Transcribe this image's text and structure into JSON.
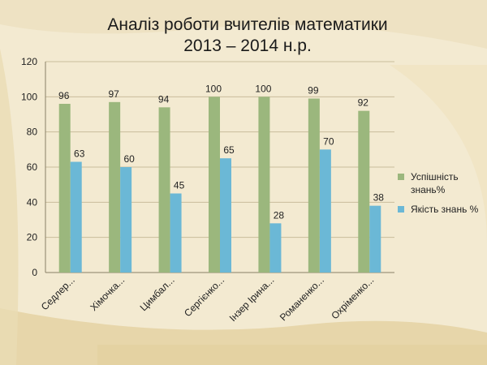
{
  "title_line1": "Аналіз роботи вчителів математики",
  "title_line2": "2013 – 2014 н.р.",
  "colors": {
    "series1": "#9bb77d",
    "series2": "#6bb8d6",
    "background": "#f3ead1",
    "accent": "#e8d6a6"
  },
  "chart_data": {
    "type": "bar",
    "categories": [
      "Седлер...",
      "Хімочка...",
      "Цимбал...",
      "Сергієнко...",
      "Інзер Ірина...",
      "Романенко...",
      "Охріменко..."
    ],
    "series": [
      {
        "name": "Успішність знань%",
        "values": [
          96,
          97,
          94,
          100,
          100,
          99,
          92
        ]
      },
      {
        "name": "Якість знань %",
        "values": [
          63,
          60,
          45,
          65,
          28,
          70,
          38
        ]
      }
    ],
    "ylim": [
      0,
      120
    ],
    "yticks": [
      0,
      20,
      40,
      60,
      80,
      100,
      120
    ],
    "grid": true,
    "legend": "right"
  }
}
